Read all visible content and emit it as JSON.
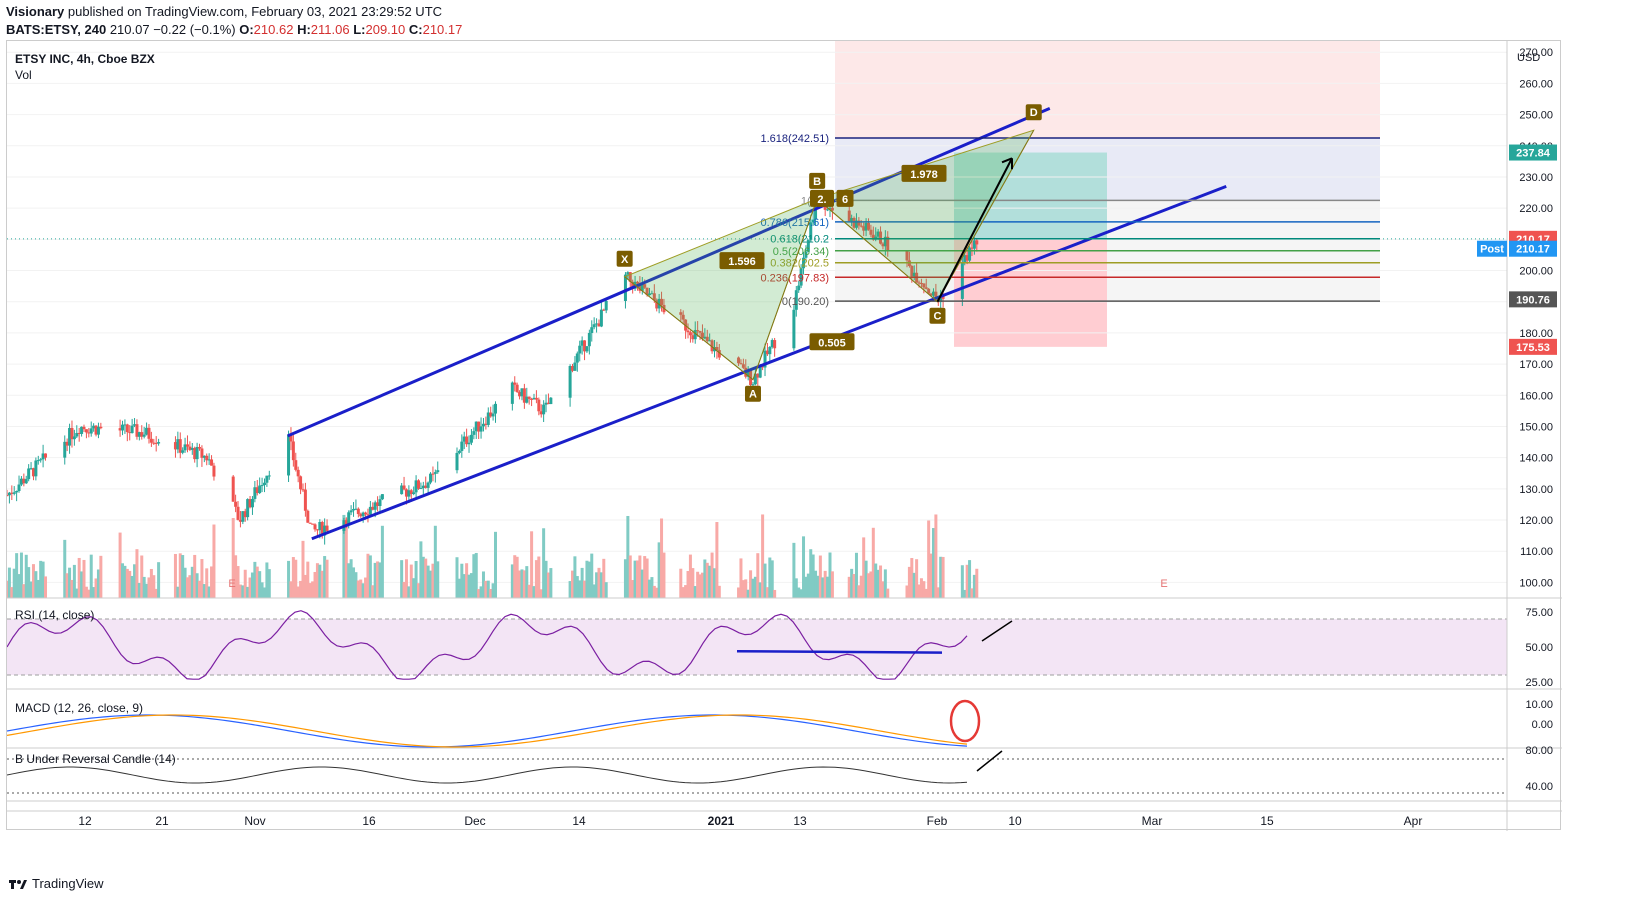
{
  "header": {
    "publisher": "Visionary",
    "published_text": "published on TradingView.com, February 03, 2021 23:29:52 UTC",
    "symbol_line": "BATS:ETSY, 240",
    "last": "210.07",
    "change": "−0.22 (−0.1%)",
    "o_label": "O:",
    "o_value": "210.62",
    "h_label": "H:",
    "h_value": "211.06",
    "l_label": "L:",
    "l_value": "209.10",
    "c_label": "C:",
    "c_value": "210.17"
  },
  "legend": {
    "title": "ETSY INC, 4h, Cboe BZX",
    "vol": "Vol"
  },
  "price_axis": {
    "currency": "USD",
    "ticks": [
      "270.00",
      "260.00",
      "250.00",
      "240.00",
      "230.00",
      "220.00",
      "210.00",
      "200.00",
      "190.00",
      "180.00",
      "170.00",
      "160.00",
      "150.00",
      "140.00",
      "130.00",
      "120.00",
      "110.00",
      "100.00"
    ],
    "tick_values": [
      270,
      260,
      250,
      240,
      230,
      220,
      210,
      200,
      190,
      180,
      170,
      160,
      150,
      140,
      130,
      120,
      110,
      100
    ],
    "badges": [
      {
        "text": "237.84",
        "value": 237.84,
        "color": "#26a69a"
      },
      {
        "text": "210.17",
        "value": 210.17,
        "color": "#ef5350"
      },
      {
        "text": "Post",
        "value": 207,
        "color": "#2196f3"
      },
      {
        "text": "210.17",
        "value": 207,
        "color": "#2196f3"
      },
      {
        "text": "190.76",
        "value": 190.76,
        "color": "#555555"
      },
      {
        "text": "175.53",
        "value": 175.53,
        "color": "#ef5350"
      }
    ]
  },
  "time_axis": [
    "12",
    "21",
    "Nov",
    "16",
    "Dec",
    "14",
    "2021",
    "13",
    "Feb",
    "10",
    "Mar",
    "15",
    "Apr"
  ],
  "fib_levels": [
    {
      "label": "1.618(242.51)",
      "value": 242.51,
      "color": "#1a237e"
    },
    {
      "label": "1(222",
      "value": 222.5,
      "color": "#888888"
    },
    {
      "label": "0.786(215.61)",
      "value": 215.61,
      "color": "#1565c0"
    },
    {
      "label": "0.618(210.2",
      "value": 210.2,
      "color": "#00897b"
    },
    {
      "label": "0.5(206.34)",
      "value": 206.34,
      "color": "#43a047"
    },
    {
      "label": "0.382(202.5",
      "value": 202.5,
      "color": "#9e9d24"
    },
    {
      "label": "0.236(197.83)",
      "value": 197.83,
      "color": "#c62828"
    },
    {
      "label": "0(190.20)",
      "value": 190.2,
      "color": "#555555"
    }
  ],
  "harmonic": {
    "points": [
      "X",
      "A",
      "B",
      "C",
      "D"
    ],
    "ratios": [
      "1.596",
      "2.",
      "6",
      "1.978",
      "0.505"
    ]
  },
  "panes": {
    "rsi": {
      "title": "RSI (14, close)",
      "ticks": [
        "75.00",
        "50.00",
        "25.00"
      ],
      "tick_values": [
        75,
        50,
        25
      ]
    },
    "macd": {
      "title": "MACD (12, 26, close, 9)",
      "ticks": [
        "10.00",
        "0.00"
      ],
      "tick_values": [
        10,
        0
      ]
    },
    "bb": {
      "title": "B Under Reversal Candle (14)",
      "ticks": [
        "80.00",
        "40.00"
      ],
      "tick_values": [
        80,
        40
      ]
    }
  },
  "earnings_marker": "E",
  "footer": {
    "brand": "TradingView"
  },
  "chart_data": {
    "type": "candlestick",
    "title": "ETSY INC, 4h, Cboe BZX",
    "ylim": [
      95,
      272
    ],
    "x_range": [
      "2020-10-05",
      "2021-04-10"
    ],
    "key_points": [
      {
        "label": "X",
        "date": "2020-12-21",
        "price": 198
      },
      {
        "label": "A",
        "date": "2021-01-06",
        "price": 165
      },
      {
        "label": "B",
        "date": "2021-01-14",
        "price": 223
      },
      {
        "label": "C",
        "date": "2021-01-29",
        "price": 190
      },
      {
        "label": "D",
        "date": "2021-02-10",
        "price": 245
      }
    ],
    "channel": {
      "upper": [
        [
          "2020-11-09",
          147
        ],
        [
          "2021-02-12",
          252
        ]
      ],
      "lower": [
        [
          "2020-11-12",
          114
        ],
        [
          "2021-03-06",
          227
        ]
      ]
    },
    "position": {
      "target": 237.84,
      "entry": 210.17,
      "stop": 175.53
    },
    "last_price": 210.17
  }
}
